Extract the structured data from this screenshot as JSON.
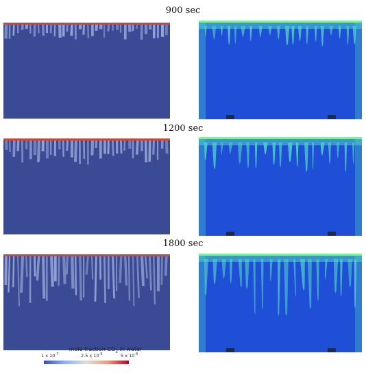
{
  "rows": [
    {
      "time": "900 sec",
      "depth": 0.18,
      "spread": 0.1
    },
    {
      "time": "1200 sec",
      "depth": 0.28,
      "spread": 0.15
    },
    {
      "time": "1800 sec",
      "depth": 0.55,
      "spread": 0.35
    }
  ],
  "legend": {
    "title_prefix": "mole fraction CO",
    "title_sub": "2",
    "title_suffix": " in water",
    "ticks": [
      {
        "base": "1 x 10",
        "exp": "-7"
      },
      {
        "base": "2.5 x 10",
        "exp": "-5"
      },
      {
        "base": "5 x 10",
        "exp": "-5"
      }
    ]
  },
  "colors": {
    "sim_background": "#3a4a94",
    "sim_finger": "#9aa9d6",
    "sim_top": "#c9483a",
    "photo_background": "#1f4fd6",
    "photo_finger": "#4fd2c8",
    "photo_top": "#7ef0a0"
  }
}
